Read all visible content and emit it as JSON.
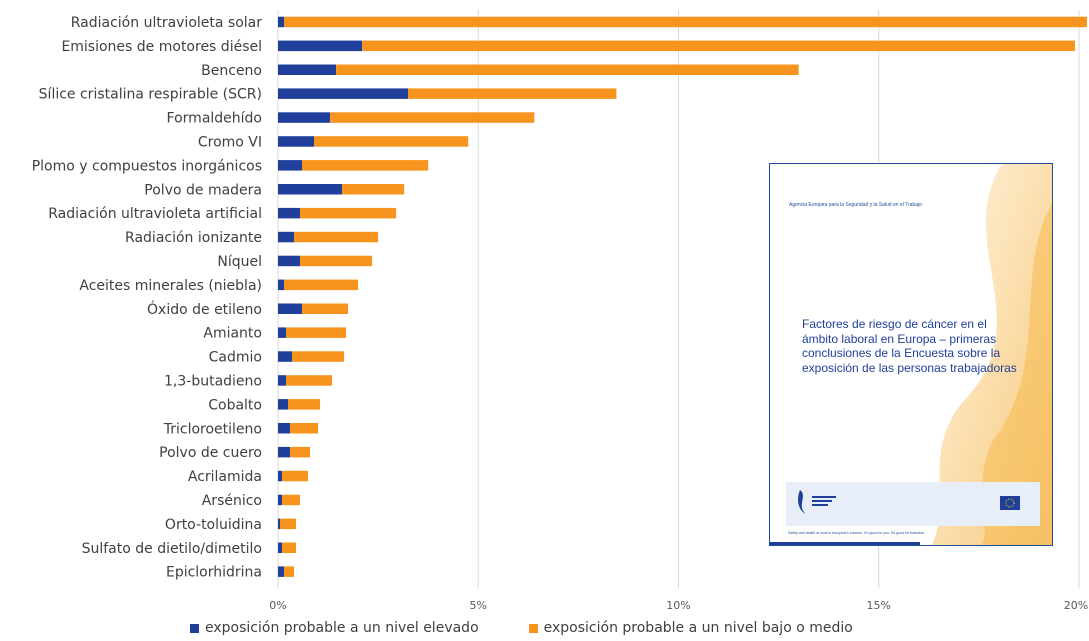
{
  "chart_data": {
    "type": "bar",
    "orientation": "horizontal",
    "stacked": true,
    "categories": [
      "Radiación ultravioleta solar",
      "Emisiones de motores diésel",
      "Benceno",
      "Sílice cristalina respirable (SCR)",
      "Formaldehído",
      "Cromo VI",
      "Plomo y compuestos inorgánicos",
      "Polvo de madera",
      "Radiación ultravioleta artificial",
      "Radiación ionizante",
      "Níquel",
      "Aceites minerales (niebla)",
      "Óxido de etileno",
      "Amianto",
      "Cadmio",
      "1,3-butadieno",
      "Cobalto",
      "Tricloroetileno",
      "Polvo de cuero",
      "Acrilamida",
      "Arsénico",
      "Orto-toluidina",
      "Sulfato de dietilo/dimetilo",
      "Epiclorhidrina"
    ],
    "series": [
      {
        "name": "exposición probable a un nivel elevado",
        "color": "#1f3f9a",
        "values": [
          0.15,
          2.1,
          1.45,
          3.25,
          1.3,
          0.9,
          0.6,
          1.6,
          0.55,
          0.4,
          0.55,
          0.15,
          0.6,
          0.2,
          0.35,
          0.2,
          0.25,
          0.3,
          0.3,
          0.1,
          0.1,
          0.05,
          0.1,
          0.15
        ]
      },
      {
        "name": "exposición probable a un nivel bajo o medio",
        "color": "#f7941d",
        "values": [
          20.05,
          17.8,
          11.55,
          5.2,
          5.1,
          3.85,
          3.15,
          1.55,
          2.4,
          2.1,
          1.8,
          1.85,
          1.15,
          1.5,
          1.3,
          1.15,
          0.8,
          0.7,
          0.5,
          0.65,
          0.45,
          0.4,
          0.35,
          0.25
        ]
      }
    ],
    "x_ticks": [
      "0%",
      "5%",
      "10%",
      "15%",
      "20%"
    ],
    "xlim": [
      0,
      20.2
    ],
    "grid": "vertical",
    "legend": "bottom"
  },
  "inset": {
    "agency_line": "Agencia Europea para la Seguridad y la Salud en el Trabajo",
    "title": "Factores de riesgo de cáncer en el ámbito laboral en Europa – primeras conclusiones de la Encuesta sobre la exposición de las personas trabajadoras",
    "tagline": "Safety and health at work is everyone's concern. It's good for you. It's good for business."
  }
}
